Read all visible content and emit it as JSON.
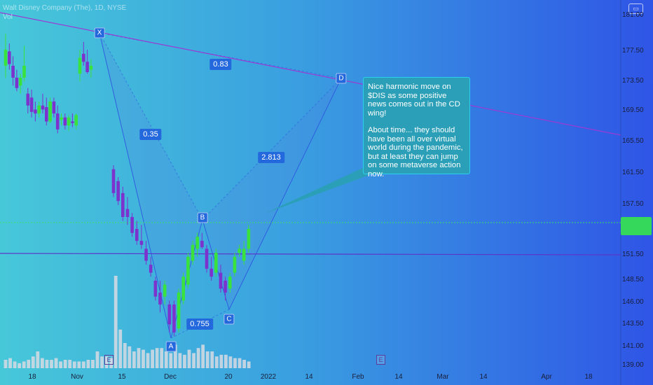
{
  "header": {
    "title": "Walt Disney Company (The), 1D, NYSE",
    "vol_label": "Vol"
  },
  "toolbar": {
    "icon": "camera-icon"
  },
  "colors": {
    "up_candle": "#39e23d",
    "down_candle": "#7c32cc",
    "volume_bar": "#d7dbe3",
    "trendline": "#9b3bd4",
    "hline": "#5b37c9",
    "pattern_edge": "#2f5ee0",
    "price_tag": "#35d85a",
    "note_bg": "#2a9fb7"
  },
  "y_axis": {
    "labels": [
      "181.00",
      "177.50",
      "173.50",
      "169.50",
      "165.50",
      "161.50",
      "157.50",
      "151.50",
      "148.50",
      "146.00",
      "143.50",
      "141.00",
      "139.00"
    ]
  },
  "x_axis": {
    "labels": [
      "18",
      "Nov",
      "15",
      "Dec",
      "20",
      "2022",
      "14",
      "Feb",
      "14",
      "Mar",
      "14",
      "Apr",
      "18"
    ]
  },
  "price_tag": {
    "line1": "",
    "line2": ""
  },
  "pattern": {
    "points": [
      {
        "name": "X",
        "price": 178.5
      },
      {
        "name": "A",
        "price": 142.1
      },
      {
        "name": "B",
        "price": 154.9
      },
      {
        "name": "C",
        "price": 145.6
      },
      {
        "name": "D",
        "price": 174.1
      }
    ],
    "ratios": [
      "0.35",
      "0.83",
      "2.813",
      "0.755"
    ]
  },
  "events": [
    "E",
    "E"
  ],
  "note": {
    "paragraph1": "Nice harmonic move on $DIS as some positive news comes out in the CD wing!",
    "paragraph2": "About time... they should have been all over virtual world during the pandemic, but at least they can jump on some metaverse action now."
  },
  "chart_data": {
    "type": "candlestick",
    "title": "Walt Disney Company (The), 1D, NYSE",
    "ylim": [
      139.0,
      182.0
    ],
    "horizontal_line": 151.7,
    "candles": [
      {
        "o": 176.0,
        "h": 180.0,
        "l": 174.5,
        "c": 178.0
      },
      {
        "o": 177.8,
        "h": 178.8,
        "l": 175.5,
        "c": 176.2
      },
      {
        "o": 176.0,
        "h": 177.2,
        "l": 173.5,
        "c": 174.5
      },
      {
        "o": 174.5,
        "h": 175.5,
        "l": 172.8,
        "c": 173.2
      },
      {
        "o": 173.5,
        "h": 175.0,
        "l": 172.5,
        "c": 174.5
      },
      {
        "o": 174.5,
        "h": 178.5,
        "l": 174.0,
        "c": 176.0
      },
      {
        "o": 172.5,
        "h": 173.2,
        "l": 170.0,
        "c": 171.0
      },
      {
        "o": 172.0,
        "h": 173.0,
        "l": 169.5,
        "c": 170.2
      },
      {
        "o": 170.5,
        "h": 171.5,
        "l": 169.0,
        "c": 170.0
      },
      {
        "o": 170.0,
        "h": 171.5,
        "l": 169.5,
        "c": 171.0
      },
      {
        "o": 171.0,
        "h": 172.5,
        "l": 170.0,
        "c": 170.5
      },
      {
        "o": 170.8,
        "h": 172.0,
        "l": 168.5,
        "c": 169.0
      },
      {
        "o": 169.0,
        "h": 172.0,
        "l": 168.8,
        "c": 171.5
      },
      {
        "o": 171.5,
        "h": 172.0,
        "l": 169.5,
        "c": 170.0
      },
      {
        "o": 170.0,
        "h": 171.0,
        "l": 167.5,
        "c": 168.0
      },
      {
        "o": 169.2,
        "h": 170.0,
        "l": 168.5,
        "c": 169.5
      },
      {
        "o": 169.5,
        "h": 170.0,
        "l": 168.0,
        "c": 168.5
      },
      {
        "o": 168.5,
        "h": 169.8,
        "l": 167.8,
        "c": 169.5
      },
      {
        "o": 169.0,
        "h": 170.0,
        "l": 168.3,
        "c": 168.8
      },
      {
        "o": 168.5,
        "h": 170.0,
        "l": 168.0,
        "c": 169.8
      },
      {
        "o": 175.0,
        "h": 178.0,
        "l": 174.0,
        "c": 177.0
      },
      {
        "o": 177.5,
        "h": 179.0,
        "l": 176.0,
        "c": 176.5
      },
      {
        "o": 176.5,
        "h": 178.0,
        "l": 175.0,
        "c": 175.2
      },
      {
        "o": 175.5,
        "h": 176.8,
        "l": 174.5,
        "c": 176.0
      },
      {
        "o": 163.0,
        "h": 163.5,
        "l": 159.5,
        "c": 160.0
      },
      {
        "o": 161.5,
        "h": 162.0,
        "l": 158.5,
        "c": 159.0
      },
      {
        "o": 160.0,
        "h": 160.8,
        "l": 156.5,
        "c": 157.0
      },
      {
        "o": 158.0,
        "h": 159.5,
        "l": 156.0,
        "c": 157.0
      },
      {
        "o": 157.0,
        "h": 157.5,
        "l": 154.5,
        "c": 155.0
      },
      {
        "o": 155.5,
        "h": 156.5,
        "l": 153.5,
        "c": 154.0
      },
      {
        "o": 154.0,
        "h": 156.0,
        "l": 153.0,
        "c": 153.5
      },
      {
        "o": 153.0,
        "h": 154.0,
        "l": 151.0,
        "c": 151.5
      },
      {
        "o": 151.0,
        "h": 152.0,
        "l": 149.5,
        "c": 150.0
      },
      {
        "o": 149.0,
        "h": 149.5,
        "l": 146.5,
        "c": 147.0
      },
      {
        "o": 147.5,
        "h": 149.0,
        "l": 145.0,
        "c": 146.0
      },
      {
        "o": 147.0,
        "h": 149.0,
        "l": 146.0,
        "c": 148.5
      },
      {
        "o": 146.0,
        "h": 146.5,
        "l": 142.5,
        "c": 143.5
      },
      {
        "o": 146.0,
        "h": 146.5,
        "l": 142.0,
        "c": 142.5
      },
      {
        "o": 143.0,
        "h": 148.0,
        "l": 142.5,
        "c": 147.5
      },
      {
        "o": 146.5,
        "h": 150.0,
        "l": 146.0,
        "c": 149.5
      },
      {
        "o": 148.5,
        "h": 152.5,
        "l": 148.0,
        "c": 152.0
      },
      {
        "o": 151.5,
        "h": 154.0,
        "l": 151.0,
        "c": 153.5
      },
      {
        "o": 153.0,
        "h": 155.0,
        "l": 152.0,
        "c": 154.5
      },
      {
        "o": 154.0,
        "h": 155.0,
        "l": 153.0,
        "c": 153.2
      },
      {
        "o": 153.0,
        "h": 153.5,
        "l": 150.0,
        "c": 150.5
      },
      {
        "o": 150.5,
        "h": 152.0,
        "l": 149.0,
        "c": 149.5
      },
      {
        "o": 150.0,
        "h": 153.0,
        "l": 149.5,
        "c": 152.5
      },
      {
        "o": 150.0,
        "h": 151.0,
        "l": 147.5,
        "c": 148.0
      },
      {
        "o": 149.0,
        "h": 149.5,
        "l": 146.5,
        "c": 147.5
      },
      {
        "o": 148.0,
        "h": 150.0,
        "l": 147.5,
        "c": 149.5
      },
      {
        "o": 150.0,
        "h": 152.5,
        "l": 149.5,
        "c": 152.0
      },
      {
        "o": 152.5,
        "h": 153.5,
        "l": 152.0,
        "c": 153.0
      },
      {
        "o": 151.5,
        "h": 154.0,
        "l": 151.0,
        "c": 153.0
      },
      {
        "o": 153.0,
        "h": 156.0,
        "l": 152.5,
        "c": 155.5
      }
    ],
    "volume": [
      0.05,
      0.06,
      0.04,
      0.03,
      0.04,
      0.05,
      0.07,
      0.1,
      0.06,
      0.05,
      0.05,
      0.06,
      0.04,
      0.05,
      0.05,
      0.04,
      0.04,
      0.04,
      0.05,
      0.05,
      0.1,
      0.07,
      0.07,
      0.06,
      0.55,
      0.23,
      0.15,
      0.13,
      0.1,
      0.12,
      0.11,
      0.09,
      0.11,
      0.12,
      0.12,
      0.1,
      0.09,
      0.14,
      0.09,
      0.08,
      0.11,
      0.09,
      0.12,
      0.14,
      0.1,
      0.1,
      0.07,
      0.08,
      0.08,
      0.07,
      0.06,
      0.06,
      0.05,
      0.04
    ]
  }
}
